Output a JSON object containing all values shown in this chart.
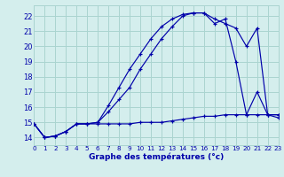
{
  "xlabel": "Graphe des températures (°c)",
  "bg_color": "#d4eeed",
  "grid_color": "#aad4d0",
  "line_color": "#0000aa",
  "xlim": [
    0,
    23
  ],
  "ylim": [
    13.5,
    22.7
  ],
  "yticks": [
    14,
    15,
    16,
    17,
    18,
    19,
    20,
    21,
    22
  ],
  "xticks": [
    0,
    1,
    2,
    3,
    4,
    5,
    6,
    7,
    8,
    9,
    10,
    11,
    12,
    13,
    14,
    15,
    16,
    17,
    18,
    19,
    20,
    21,
    22,
    23
  ],
  "curve1_x": [
    0,
    1,
    2,
    3,
    4,
    5,
    6,
    7,
    8,
    9,
    10,
    11,
    12,
    13,
    14,
    15,
    16,
    17,
    18,
    19,
    20,
    21,
    22,
    23
  ],
  "curve1_y": [
    14.9,
    14.0,
    14.1,
    14.4,
    14.9,
    14.9,
    15.0,
    15.7,
    16.5,
    17.3,
    18.5,
    19.5,
    20.5,
    21.3,
    22.0,
    22.2,
    22.2,
    21.8,
    21.5,
    21.2,
    20.0,
    21.2,
    15.5,
    15.5
  ],
  "curve2_x": [
    0,
    1,
    2,
    3,
    4,
    5,
    6,
    7,
    8,
    9,
    10,
    11,
    12,
    13,
    14,
    15,
    16,
    17,
    18,
    19,
    20,
    21,
    22,
    23
  ],
  "curve2_y": [
    14.9,
    14.0,
    14.1,
    14.4,
    14.9,
    14.9,
    15.0,
    16.1,
    17.3,
    18.5,
    19.5,
    20.5,
    21.3,
    21.8,
    22.1,
    22.2,
    22.2,
    21.5,
    21.8,
    19.0,
    15.5,
    17.0,
    15.5,
    15.3
  ],
  "curve3_x": [
    0,
    1,
    2,
    3,
    4,
    5,
    6,
    7,
    8,
    9,
    10,
    11,
    12,
    13,
    14,
    15,
    16,
    17,
    18,
    19,
    20,
    21,
    22,
    23
  ],
  "curve3_y": [
    14.9,
    14.0,
    14.1,
    14.4,
    14.9,
    14.9,
    14.9,
    14.9,
    14.9,
    14.9,
    15.0,
    15.0,
    15.0,
    15.1,
    15.2,
    15.3,
    15.4,
    15.4,
    15.5,
    15.5,
    15.5,
    15.5,
    15.5,
    15.5
  ]
}
